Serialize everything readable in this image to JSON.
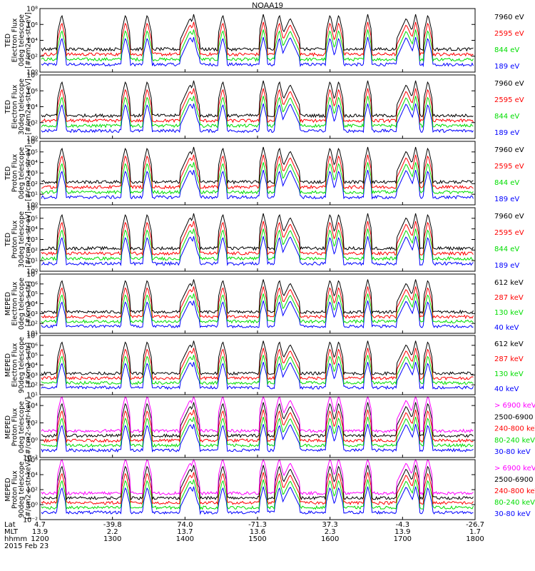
{
  "title": "NOAA19",
  "colors": {
    "blue": "#0000ff",
    "red": "#ff0000",
    "green": "#00dd00",
    "black": "#000000",
    "magenta": "#ff00ff"
  },
  "chart_data": {
    "type": "line",
    "title": "NOAA19",
    "date": "2015 Feb 23",
    "x_axis": {
      "range": [
        1200,
        1800
      ],
      "hhmm": [
        "1200",
        "1300",
        "1400",
        "1500",
        "1600",
        "1700",
        "1800"
      ],
      "lat": [
        "4.7",
        "-39.8",
        "74.0",
        "-71.3",
        "37.3",
        "-4.3",
        "-26.7"
      ],
      "mlt": [
        "13.9",
        "2.2",
        "13.7",
        "13.6",
        "2.3",
        "13.9",
        "1.7"
      ],
      "row_labels": [
        "Lat",
        "MLT",
        "hhmm"
      ]
    },
    "panels": [
      {
        "id": "ted-e-0",
        "ylabel": [
          "TED",
          "Electron Flux",
          "0deg telescope",
          "[#/cm2-s-str-eV]"
        ],
        "exp_range": [
          0,
          8
        ],
        "ticks": [
          {
            "v": 0,
            "t": "10⁰"
          },
          {
            "v": 2,
            "t": "10²"
          },
          {
            "v": 4,
            "t": "10⁴"
          },
          {
            "v": 6,
            "t": "10⁶"
          },
          {
            "v": 8,
            "t": "10⁸"
          }
        ],
        "legend": [
          {
            "label": "7960 eV",
            "color": "#000000"
          },
          {
            "label": "2595 eV",
            "color": "#ff0000"
          },
          {
            "label": "844 eV",
            "color": "#00dd00"
          },
          {
            "label": "189 eV",
            "color": "#0000ff"
          }
        ]
      },
      {
        "id": "ted-e-30",
        "ylabel": [
          "TED",
          "Electron Flux",
          "30deg telescope",
          "[#/cm2-s-str-eV]"
        ],
        "exp_range": [
          0,
          8
        ],
        "ticks": [
          {
            "v": 0,
            "t": "10⁰"
          },
          {
            "v": 2,
            "t": "10²"
          },
          {
            "v": 4,
            "t": "10⁴"
          },
          {
            "v": 6,
            "t": "10⁶"
          },
          {
            "v": 8,
            "t": "10⁸"
          }
        ],
        "legend": [
          {
            "label": "7960 eV",
            "color": "#000000"
          },
          {
            "label": "2595 eV",
            "color": "#ff0000"
          },
          {
            "label": "844 eV",
            "color": "#00dd00"
          },
          {
            "label": "189 eV",
            "color": "#0000ff"
          }
        ]
      },
      {
        "id": "ted-p-0",
        "ylabel": [
          "TED",
          "Proton Flux",
          "0deg telescope",
          "[#/cm2-s-str-eV]"
        ],
        "exp_range": [
          0,
          6
        ],
        "ticks": [
          {
            "v": 0,
            "t": "10⁰"
          },
          {
            "v": 1,
            "t": "10¹"
          },
          {
            "v": 2,
            "t": "10²"
          },
          {
            "v": 3,
            "t": "10³"
          },
          {
            "v": 4,
            "t": "10⁴"
          },
          {
            "v": 5,
            "t": "10⁵"
          },
          {
            "v": 6,
            "t": "10⁶"
          }
        ],
        "legend": [
          {
            "label": "7960 eV",
            "color": "#000000"
          },
          {
            "label": "2595 eV",
            "color": "#ff0000"
          },
          {
            "label": "844 eV",
            "color": "#00dd00"
          },
          {
            "label": "189 eV",
            "color": "#0000ff"
          }
        ]
      },
      {
        "id": "ted-p-30",
        "ylabel": [
          "TED",
          "Proton Flux",
          "30deg telescope",
          "[#/cm2-s-str-eV]"
        ],
        "exp_range": [
          0,
          6
        ],
        "ticks": [
          {
            "v": 0,
            "t": "10⁰"
          },
          {
            "v": 1,
            "t": "10¹"
          },
          {
            "v": 2,
            "t": "10²"
          },
          {
            "v": 3,
            "t": "10³"
          },
          {
            "v": 4,
            "t": "10⁴"
          },
          {
            "v": 5,
            "t": "10⁵"
          },
          {
            "v": 6,
            "t": "10⁶"
          }
        ],
        "legend": [
          {
            "label": "7960 eV",
            "color": "#000000"
          },
          {
            "label": "2595 eV",
            "color": "#ff0000"
          },
          {
            "label": "844 eV",
            "color": "#00dd00"
          },
          {
            "label": "189 eV",
            "color": "#0000ff"
          }
        ]
      },
      {
        "id": "meped-e-0",
        "ylabel": [
          "MEPED",
          "Electron Flux",
          "0deg telescope",
          "[#/cm2-s-str]"
        ],
        "exp_range": [
          1,
          7
        ],
        "ticks": [
          {
            "v": 1,
            "t": "10¹"
          },
          {
            "v": 2,
            "t": "10²"
          },
          {
            "v": 3,
            "t": "10³"
          },
          {
            "v": 4,
            "t": "10⁴"
          },
          {
            "v": 5,
            "t": "10⁵"
          },
          {
            "v": 6,
            "t": "10⁶"
          },
          {
            "v": 7,
            "t": "10⁷"
          }
        ],
        "legend": [
          {
            "label": "612 keV",
            "color": "#000000"
          },
          {
            "label": "287 keV",
            "color": "#ff0000"
          },
          {
            "label": "130 keV",
            "color": "#00dd00"
          },
          {
            "label": "40 keV",
            "color": "#0000ff"
          }
        ]
      },
      {
        "id": "meped-e-90",
        "ylabel": [
          "MEPED",
          "Electron Flux",
          "90deg telescope",
          "[#/cm2-s-str]"
        ],
        "exp_range": [
          1,
          7
        ],
        "ticks": [
          {
            "v": 1,
            "t": "10¹"
          },
          {
            "v": 2,
            "t": "10²"
          },
          {
            "v": 3,
            "t": "10³"
          },
          {
            "v": 4,
            "t": "10⁴"
          },
          {
            "v": 5,
            "t": "10⁵"
          },
          {
            "v": 6,
            "t": "10⁶"
          },
          {
            "v": 7,
            "t": "10⁷"
          }
        ],
        "legend": [
          {
            "label": "612 keV",
            "color": "#000000"
          },
          {
            "label": "287 keV",
            "color": "#ff0000"
          },
          {
            "label": "130 keV",
            "color": "#00dd00"
          },
          {
            "label": "40 keV",
            "color": "#0000ff"
          }
        ]
      },
      {
        "id": "meped-p-0",
        "ylabel": [
          "MEPED",
          "Proton Flux",
          "0deg telescope",
          "[#/cm2-s-str-keV]"
        ],
        "exp_range": [
          -2,
          5
        ],
        "ticks": [
          {
            "v": -2,
            "t": "10⁻²"
          },
          {
            "v": 0,
            "t": "10⁰"
          },
          {
            "v": 2,
            "t": "10²"
          },
          {
            "v": 4,
            "t": "10⁴"
          }
        ],
        "legend": [
          {
            "label": "> 6900 keV",
            "color": "#ff00ff"
          },
          {
            "label": "2500-6900",
            "color": "#000000"
          },
          {
            "label": "240-800 keV",
            "color": "#ff0000"
          },
          {
            "label": "80-240 keV",
            "color": "#00dd00"
          },
          {
            "label": "30-80 keV",
            "color": "#0000ff"
          }
        ]
      },
      {
        "id": "meped-p-90",
        "ylabel": [
          "MEPED",
          "Proton Flux",
          "90deg telescope",
          "[#/cm2-s-str-keV]"
        ],
        "exp_range": [
          -2,
          6
        ],
        "ticks": [
          {
            "v": -2,
            "t": "10⁻²"
          },
          {
            "v": 0,
            "t": "10⁰"
          },
          {
            "v": 2,
            "t": "10²"
          },
          {
            "v": 4,
            "t": "10⁴"
          },
          {
            "v": 6,
            "t": "10⁶"
          }
        ],
        "legend": [
          {
            "label": "> 6900 keV",
            "color": "#ff00ff"
          },
          {
            "label": "2500-6900",
            "color": "#000000"
          },
          {
            "label": "240-800 keV",
            "color": "#ff0000"
          },
          {
            "label": "80-240 keV",
            "color": "#00dd00"
          },
          {
            "label": "30-80 keV",
            "color": "#0000ff"
          }
        ]
      }
    ]
  }
}
